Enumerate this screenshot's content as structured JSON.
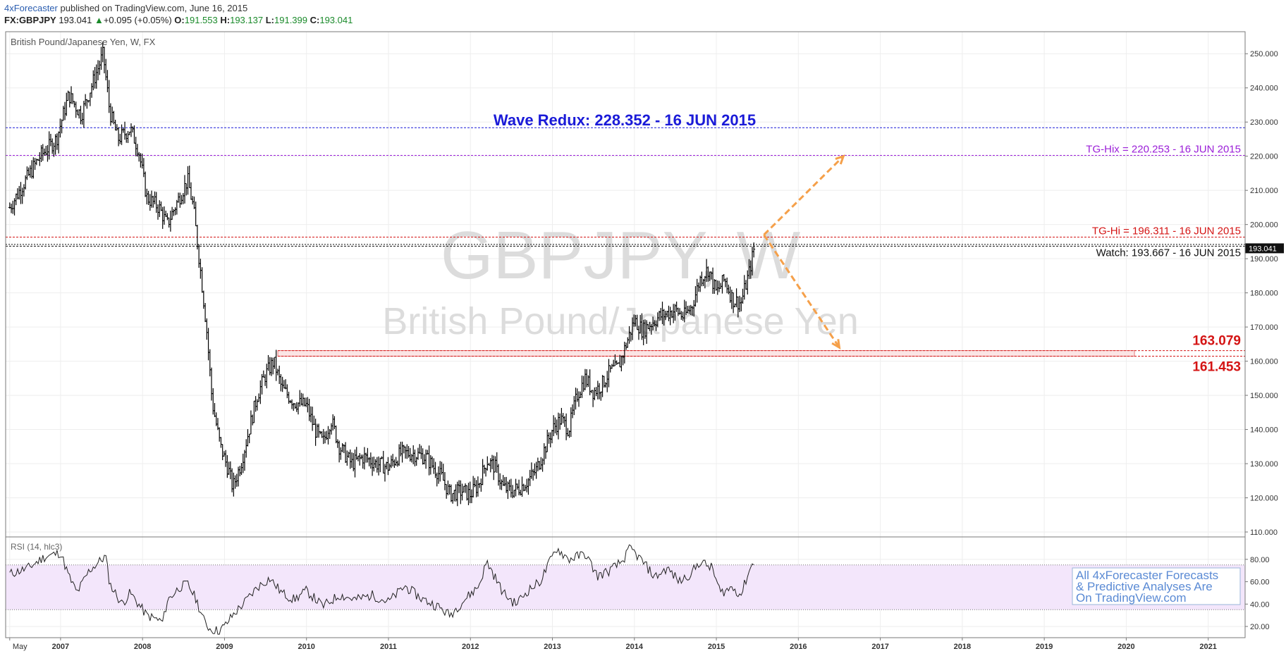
{
  "header": {
    "author": "4xForecaster",
    "published_text": "published on TradingView.com, June 16, 2015",
    "symbol": "FX:GBPJPY",
    "last": "193.041",
    "change": "+0.095 (+0.05%)",
    "o_label": "O:",
    "o_value": "191.553",
    "h_label": "H:",
    "h_value": "193.137",
    "l_label": "L:",
    "l_value": "191.399",
    "c_label": "C:",
    "c_value": "193.041"
  },
  "colors": {
    "candle": "#000000",
    "wave_line": "#1a1ad8",
    "tg_hix": "#9b1fd8",
    "tg_hi": "#d41414",
    "zone": "#d41414",
    "arrow": "#f5a04a",
    "rsi_band": "#f3e6fb",
    "watermark": "#d9d9d9"
  },
  "chart_data": [
    {
      "type": "ohlc",
      "title": "British Pound/Japanese Yen, W, FX",
      "watermark_symbol": "GBPJPY, W",
      "watermark_name": "British Pound/Japanese Yen",
      "price_tag": "193.041",
      "ylim": [
        110,
        255
      ],
      "yticks": [
        "110.000",
        "120.000",
        "130.000",
        "140.000",
        "150.000",
        "160.000",
        "170.000",
        "180.000",
        "190.000",
        "200.000",
        "210.000",
        "220.000",
        "230.000",
        "240.000",
        "250.000"
      ],
      "xlabels": [
        "May",
        "2007",
        "2008",
        "2009",
        "2010",
        "2011",
        "2012",
        "2013",
        "2014",
        "2015",
        "2016",
        "2017",
        "2018",
        "2019",
        "2020",
        "2021"
      ],
      "xlim": [
        "2006-05",
        "2021-06"
      ],
      "close_path": [
        [
          2006.38,
          205
        ],
        [
          2006.55,
          212
        ],
        [
          2006.75,
          220
        ],
        [
          2006.95,
          225
        ],
        [
          2007.1,
          238
        ],
        [
          2007.25,
          232
        ],
        [
          2007.4,
          242
        ],
        [
          2007.52,
          250
        ],
        [
          2007.6,
          233
        ],
        [
          2007.7,
          225
        ],
        [
          2007.85,
          228
        ],
        [
          2007.95,
          222
        ],
        [
          2008.05,
          208
        ],
        [
          2008.2,
          205
        ],
        [
          2008.3,
          200
        ],
        [
          2008.45,
          208
        ],
        [
          2008.55,
          213
        ],
        [
          2008.62,
          205
        ],
        [
          2008.7,
          188
        ],
        [
          2008.78,
          170
        ],
        [
          2008.85,
          148
        ],
        [
          2008.95,
          135
        ],
        [
          2009.05,
          128
        ],
        [
          2009.1,
          123
        ],
        [
          2009.2,
          130
        ],
        [
          2009.3,
          140
        ],
        [
          2009.4,
          150
        ],
        [
          2009.5,
          156
        ],
        [
          2009.6,
          160
        ],
        [
          2009.7,
          152
        ],
        [
          2009.85,
          148
        ],
        [
          2010.0,
          147
        ],
        [
          2010.1,
          140
        ],
        [
          2010.2,
          136
        ],
        [
          2010.3,
          143
        ],
        [
          2010.4,
          135
        ],
        [
          2010.55,
          130
        ],
        [
          2010.7,
          132
        ],
        [
          2010.85,
          130
        ],
        [
          2011.0,
          129
        ],
        [
          2011.15,
          133
        ],
        [
          2011.3,
          133
        ],
        [
          2011.45,
          132
        ],
        [
          2011.55,
          129
        ],
        [
          2011.65,
          126
        ],
        [
          2011.75,
          121
        ],
        [
          2011.9,
          122
        ],
        [
          2012.0,
          121
        ],
        [
          2012.1,
          124
        ],
        [
          2012.2,
          131
        ],
        [
          2012.3,
          129
        ],
        [
          2012.4,
          123
        ],
        [
          2012.5,
          122
        ],
        [
          2012.6,
          123
        ],
        [
          2012.7,
          125
        ],
        [
          2012.8,
          128
        ],
        [
          2012.9,
          134
        ],
        [
          2013.0,
          140
        ],
        [
          2013.1,
          143
        ],
        [
          2013.2,
          140
        ],
        [
          2013.3,
          150
        ],
        [
          2013.4,
          155
        ],
        [
          2013.5,
          151
        ],
        [
          2013.6,
          153
        ],
        [
          2013.7,
          157
        ],
        [
          2013.8,
          158
        ],
        [
          2013.9,
          165
        ],
        [
          2014.0,
          172
        ],
        [
          2014.1,
          169
        ],
        [
          2014.2,
          171
        ],
        [
          2014.3,
          173
        ],
        [
          2014.4,
          174
        ],
        [
          2014.5,
          175
        ],
        [
          2014.6,
          173
        ],
        [
          2014.7,
          176
        ],
        [
          2014.8,
          184
        ],
        [
          2014.9,
          187
        ],
        [
          2015.0,
          180
        ],
        [
          2015.1,
          184
        ],
        [
          2015.2,
          178
        ],
        [
          2015.3,
          177
        ],
        [
          2015.4,
          186
        ],
        [
          2015.46,
          193
        ]
      ],
      "levels": [
        {
          "label": "Wave Redux: 228.352 - 16 JUN 2015",
          "value": 228.352
        },
        {
          "label": "TG-Hix = 220.253 - 16 JUN 2015",
          "value": 220.253
        },
        {
          "label": "TG-Hi = 196.311 - 16 JUN 2015",
          "value": 196.311
        },
        {
          "label": "Watch: 193.667 - 16 JUN 2015",
          "value": 193.667
        }
      ],
      "zone": {
        "upper": 163.079,
        "lower": 161.453,
        "upper_label": "163.079",
        "lower_label": "161.453"
      },
      "arrows": [
        {
          "from": [
            2015.58,
            197
          ],
          "to": [
            2016.55,
            220
          ]
        },
        {
          "from": [
            2015.58,
            197
          ],
          "to": [
            2016.5,
            164
          ]
        }
      ]
    },
    {
      "type": "line",
      "title": "RSI (14, hlc3)",
      "ylim": [
        15,
        95
      ],
      "yticks": [
        "20.00",
        "40.00",
        "60.00",
        "80.00"
      ],
      "band": [
        35,
        75
      ],
      "values_path": [
        [
          2006.38,
          67
        ],
        [
          2006.6,
          72
        ],
        [
          2006.8,
          82
        ],
        [
          2007.0,
          86
        ],
        [
          2007.1,
          65
        ],
        [
          2007.2,
          50
        ],
        [
          2007.35,
          70
        ],
        [
          2007.55,
          83
        ],
        [
          2007.6,
          58
        ],
        [
          2007.75,
          40
        ],
        [
          2007.85,
          50
        ],
        [
          2007.95,
          40
        ],
        [
          2008.05,
          30
        ],
        [
          2008.15,
          27
        ],
        [
          2008.25,
          24
        ],
        [
          2008.3,
          43
        ],
        [
          2008.45,
          55
        ],
        [
          2008.55,
          58
        ],
        [
          2008.65,
          45
        ],
        [
          2008.75,
          25
        ],
        [
          2008.82,
          18
        ],
        [
          2008.92,
          16
        ],
        [
          2009.0,
          20
        ],
        [
          2009.1,
          30
        ],
        [
          2009.25,
          42
        ],
        [
          2009.4,
          55
        ],
        [
          2009.55,
          63
        ],
        [
          2009.7,
          50
        ],
        [
          2009.85,
          44
        ],
        [
          2010.0,
          52
        ],
        [
          2010.2,
          38
        ],
        [
          2010.4,
          48
        ],
        [
          2010.6,
          44
        ],
        [
          2010.8,
          48
        ],
        [
          2011.0,
          42
        ],
        [
          2011.2,
          56
        ],
        [
          2011.4,
          45
        ],
        [
          2011.6,
          38
        ],
        [
          2011.75,
          30
        ],
        [
          2011.9,
          42
        ],
        [
          2012.1,
          56
        ],
        [
          2012.2,
          78
        ],
        [
          2012.4,
          50
        ],
        [
          2012.55,
          40
        ],
        [
          2012.7,
          52
        ],
        [
          2012.85,
          60
        ],
        [
          2012.95,
          75
        ],
        [
          2013.05,
          90
        ],
        [
          2013.2,
          80
        ],
        [
          2013.4,
          85
        ],
        [
          2013.55,
          65
        ],
        [
          2013.7,
          70
        ],
        [
          2013.85,
          78
        ],
        [
          2013.95,
          90
        ],
        [
          2014.1,
          78
        ],
        [
          2014.25,
          64
        ],
        [
          2014.4,
          72
        ],
        [
          2014.55,
          60
        ],
        [
          2014.7,
          68
        ],
        [
          2014.8,
          78
        ],
        [
          2014.95,
          72
        ],
        [
          2015.05,
          50
        ],
        [
          2015.2,
          55
        ],
        [
          2015.3,
          48
        ],
        [
          2015.4,
          70
        ],
        [
          2015.46,
          78
        ]
      ]
    }
  ],
  "note": {
    "line1": "All 4xForecaster Forecasts",
    "line2": "& Predictive Analyses Are",
    "line3": "On TradingView.com"
  }
}
